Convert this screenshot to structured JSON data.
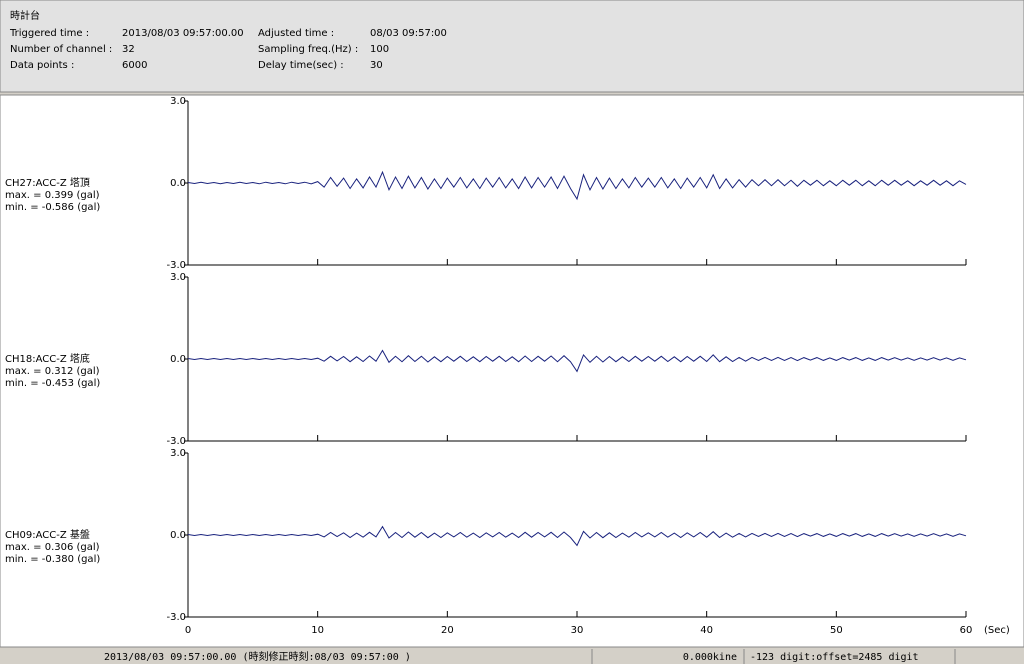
{
  "header": {
    "title": "時計台",
    "fields": [
      {
        "label": "Triggered time :",
        "value": "2013/08/03 09:57:00.00"
      },
      {
        "label": "Adjusted time :",
        "value": "08/03 09:57:00"
      },
      {
        "label": "Number of channel :",
        "value": "32"
      },
      {
        "label": "Sampling freq.(Hz) :",
        "value": "100"
      },
      {
        "label": "Data points :",
        "value": "6000"
      },
      {
        "label": "Delay time(sec) :",
        "value": "30"
      }
    ]
  },
  "time_axis": {
    "xlim": [
      0,
      60
    ],
    "xticks": [
      0,
      10,
      20,
      30,
      40,
      50,
      60
    ],
    "unit": "(Sec)",
    "x": [
      0,
      0.5,
      1,
      1.5,
      2,
      2.5,
      3,
      3.5,
      4,
      4.5,
      5,
      5.5,
      6,
      6.5,
      7,
      7.5,
      8,
      8.5,
      9,
      9.5,
      10,
      10.5,
      11,
      11.5,
      12,
      12.5,
      13,
      13.5,
      14,
      14.5,
      15,
      15.5,
      16,
      16.5,
      17,
      17.5,
      18,
      18.5,
      19,
      19.5,
      20,
      20.5,
      21,
      21.5,
      22,
      22.5,
      23,
      23.5,
      24,
      24.5,
      25,
      25.5,
      26,
      26.5,
      27,
      27.5,
      28,
      28.5,
      29,
      29.5,
      30,
      30.5,
      31,
      31.5,
      32,
      32.5,
      33,
      33.5,
      34,
      34.5,
      35,
      35.5,
      36,
      36.5,
      37,
      37.5,
      38,
      38.5,
      39,
      39.5,
      40,
      40.5,
      41,
      41.5,
      42,
      42.5,
      43,
      43.5,
      44,
      44.5,
      45,
      45.5,
      46,
      46.5,
      47,
      47.5,
      48,
      48.5,
      49,
      49.5,
      50,
      50.5,
      51,
      51.5,
      52,
      52.5,
      53,
      53.5,
      54,
      54.5,
      55,
      55.5,
      56,
      56.5,
      57,
      57.5,
      58,
      58.5,
      59,
      59.5,
      60
    ]
  },
  "chart_data": [
    {
      "type": "line",
      "name": "CH27:ACC-Z 塔頂",
      "max_label": "max. = 0.399 (gal)",
      "min_label": "min. = -0.586 (gal)",
      "color": "#1a237e",
      "ylim": [
        -3,
        3
      ],
      "yticks": [
        {
          "value": 3,
          "label": "3.0"
        },
        {
          "value": 0,
          "label": "0.0"
        },
        {
          "value": -3,
          "label": "-3.0"
        }
      ],
      "values": [
        0.02,
        -0.02,
        0.03,
        -0.02,
        0.02,
        -0.03,
        0.02,
        -0.02,
        0.03,
        -0.02,
        0.02,
        -0.03,
        0.03,
        -0.02,
        0.02,
        -0.03,
        0.03,
        -0.02,
        0.03,
        -0.03,
        0.05,
        -0.15,
        0.2,
        -0.12,
        0.18,
        -0.2,
        0.15,
        -0.18,
        0.22,
        -0.15,
        0.399,
        -0.25,
        0.22,
        -0.2,
        0.25,
        -0.18,
        0.2,
        -0.22,
        0.15,
        -0.2,
        0.18,
        -0.15,
        0.2,
        -0.18,
        0.15,
        -0.2,
        0.18,
        -0.15,
        0.2,
        -0.18,
        0.15,
        -0.2,
        0.22,
        -0.18,
        0.2,
        -0.15,
        0.22,
        -0.2,
        0.25,
        -0.2,
        -0.586,
        0.3,
        -0.25,
        0.2,
        -0.22,
        0.18,
        -0.2,
        0.15,
        -0.18,
        0.2,
        -0.15,
        0.18,
        -0.15,
        0.2,
        -0.18,
        0.15,
        -0.2,
        0.18,
        -0.15,
        0.2,
        -0.18,
        0.3,
        -0.2,
        0.15,
        -0.18,
        0.12,
        -0.15,
        0.12,
        -0.1,
        0.12,
        -0.1,
        0.12,
        -0.1,
        0.1,
        -0.12,
        0.1,
        -0.08,
        0.1,
        -0.1,
        0.08,
        -0.1,
        0.1,
        -0.08,
        0.1,
        -0.1,
        0.08,
        -0.1,
        0.1,
        -0.08,
        0.1,
        -0.08,
        0.08,
        -0.1,
        0.08,
        -0.08,
        0.1,
        -0.08,
        0.08,
        -0.1,
        0.08,
        -0.05
      ]
    },
    {
      "type": "line",
      "name": "CH18:ACC-Z 塔底",
      "max_label": "max. = 0.312 (gal)",
      "min_label": "min. = -0.453 (gal)",
      "color": "#1a237e",
      "ylim": [
        -3,
        3
      ],
      "yticks": [
        {
          "value": 3,
          "label": "3.0"
        },
        {
          "value": 0,
          "label": "0.0"
        },
        {
          "value": -3,
          "label": "-3.0"
        }
      ],
      "values": [
        0.02,
        -0.02,
        0.02,
        -0.02,
        0.02,
        -0.02,
        0.02,
        -0.02,
        0.02,
        -0.02,
        0.02,
        -0.02,
        0.02,
        -0.02,
        0.02,
        -0.02,
        0.02,
        -0.02,
        0.02,
        -0.02,
        0.03,
        -0.08,
        0.1,
        -0.07,
        0.09,
        -0.1,
        0.08,
        -0.09,
        0.11,
        -0.08,
        0.312,
        -0.12,
        0.1,
        -0.1,
        0.12,
        -0.09,
        0.1,
        -0.11,
        0.08,
        -0.1,
        0.09,
        -0.08,
        0.1,
        -0.09,
        0.08,
        -0.1,
        0.09,
        -0.08,
        0.1,
        -0.09,
        0.08,
        -0.1,
        0.11,
        -0.09,
        0.1,
        -0.08,
        0.11,
        -0.1,
        0.12,
        -0.1,
        -0.453,
        0.15,
        -0.12,
        0.1,
        -0.11,
        0.09,
        -0.1,
        0.08,
        -0.09,
        0.1,
        -0.08,
        0.09,
        -0.08,
        0.1,
        -0.09,
        0.08,
        -0.1,
        0.09,
        -0.08,
        0.1,
        -0.09,
        0.15,
        -0.1,
        0.08,
        -0.09,
        0.06,
        -0.08,
        0.06,
        -0.05,
        0.06,
        -0.05,
        0.06,
        -0.05,
        0.05,
        -0.06,
        0.05,
        -0.04,
        0.05,
        -0.05,
        0.04,
        -0.05,
        0.05,
        -0.04,
        0.05,
        -0.05,
        0.04,
        -0.05,
        0.05,
        -0.04,
        0.05,
        -0.04,
        0.04,
        -0.05,
        0.04,
        -0.04,
        0.05,
        -0.04,
        0.04,
        -0.05,
        0.04,
        -0.03
      ]
    },
    {
      "type": "line",
      "name": "CH09:ACC-Z 基盤",
      "max_label": "max. = 0.306 (gal)",
      "min_label": "min. = -0.380 (gal)",
      "color": "#1a237e",
      "ylim": [
        -3,
        3
      ],
      "yticks": [
        {
          "value": 3,
          "label": "3.0"
        },
        {
          "value": 0,
          "label": "0.0"
        },
        {
          "value": -3,
          "label": "-3.0"
        }
      ],
      "values": [
        0.02,
        -0.02,
        0.02,
        -0.02,
        0.02,
        -0.02,
        0.02,
        -0.02,
        0.02,
        -0.02,
        0.02,
        -0.02,
        0.02,
        -0.02,
        0.02,
        -0.02,
        0.02,
        -0.02,
        0.02,
        -0.02,
        0.03,
        -0.07,
        0.09,
        -0.06,
        0.08,
        -0.09,
        0.07,
        -0.08,
        0.1,
        -0.07,
        0.306,
        -0.11,
        0.09,
        -0.09,
        0.11,
        -0.08,
        0.09,
        -0.1,
        0.07,
        -0.09,
        0.08,
        -0.07,
        0.09,
        -0.08,
        0.07,
        -0.09,
        0.08,
        -0.07,
        0.09,
        -0.08,
        0.07,
        -0.09,
        0.1,
        -0.08,
        0.09,
        -0.07,
        0.1,
        -0.09,
        0.11,
        -0.09,
        -0.38,
        0.13,
        -0.11,
        0.09,
        -0.1,
        0.08,
        -0.09,
        0.07,
        -0.08,
        0.09,
        -0.07,
        0.08,
        -0.07,
        0.09,
        -0.08,
        0.07,
        -0.09,
        0.08,
        -0.07,
        0.09,
        -0.08,
        0.12,
        -0.09,
        0.07,
        -0.08,
        0.06,
        -0.07,
        0.06,
        -0.05,
        0.06,
        -0.05,
        0.06,
        -0.05,
        0.05,
        -0.06,
        0.05,
        -0.04,
        0.05,
        -0.05,
        0.04,
        -0.05,
        0.05,
        -0.04,
        0.05,
        -0.05,
        0.04,
        -0.05,
        0.05,
        -0.04,
        0.05,
        -0.04,
        0.04,
        -0.05,
        0.04,
        -0.04,
        0.05,
        -0.04,
        0.04,
        -0.05,
        0.04,
        -0.03
      ]
    }
  ],
  "status": [
    "2013/08/03 09:57:00.00  (時刻修正時刻:08/03 09:57:00  )",
    "0.000kine",
    "-123 digit:offset=2485 digit"
  ]
}
